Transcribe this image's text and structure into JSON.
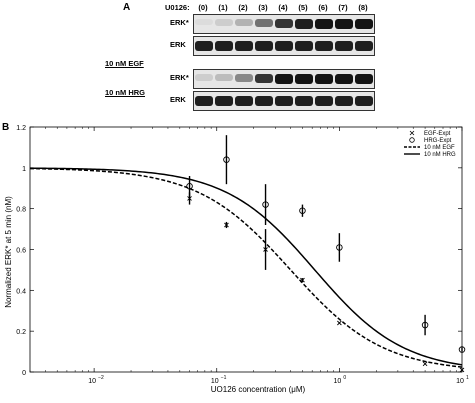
{
  "panel_a": {
    "letter": "A",
    "inhibitor_label": "U0126:",
    "lanes": [
      "(0)",
      "(1)",
      "(2)",
      "(3)",
      "(4)",
      "(5)",
      "(6)",
      "(7)",
      "(8)"
    ],
    "blocks": [
      {
        "condition": "10 nM EGF",
        "rows": [
          {
            "label": "ERK*",
            "intensities": [
              0.05,
              0.12,
              0.25,
              0.55,
              0.85,
              0.95,
              1.0,
              1.0,
              1.0
            ]
          },
          {
            "label": "ERK",
            "intensities": [
              0.95,
              0.95,
              0.95,
              0.95,
              0.95,
              0.95,
              0.95,
              0.95,
              0.95
            ]
          }
        ]
      },
      {
        "condition": "10 nM HRG",
        "rows": [
          {
            "label": "ERK*",
            "intensities": [
              0.12,
              0.2,
              0.45,
              0.85,
              1.0,
              1.0,
              1.0,
              1.0,
              1.0
            ]
          },
          {
            "label": "ERK",
            "intensities": [
              0.95,
              0.95,
              0.95,
              0.95,
              0.95,
              0.95,
              0.95,
              0.95,
              0.95
            ]
          }
        ]
      }
    ]
  },
  "panel_b": {
    "letter": "B"
  },
  "chart_data": {
    "type": "line",
    "title": "",
    "xlabel": "UO126 concentration (μM)",
    "ylabel": "Normalized ERK* at 5 min (nM)",
    "xscale": "log",
    "xlim": [
      0.003,
      10
    ],
    "ylim": [
      0,
      1.2
    ],
    "xticks": [
      0.01,
      0.1,
      1,
      10
    ],
    "xtick_labels": [
      "10",
      "10",
      "10",
      "10"
    ],
    "xtick_exponents": [
      "−2",
      "−1",
      "0",
      "1"
    ],
    "yticks": [
      0,
      0.2,
      0.4,
      0.6,
      0.8,
      1,
      1.2
    ],
    "ytick_labels": [
      "0",
      "0.2",
      "0.4",
      "0.6",
      "0.8",
      "1",
      "1.2"
    ],
    "grid": false,
    "legend_position": "top-right",
    "legend": [
      {
        "label": "EGF-Expt",
        "kind": "x-marker"
      },
      {
        "label": "HRG-Expt",
        "kind": "circle-marker"
      },
      {
        "label": "10 nM EGF",
        "kind": "dashed-line"
      },
      {
        "label": "10 nM HRG",
        "kind": "solid-line"
      }
    ],
    "series": [
      {
        "name": "10 nM EGF",
        "style": "dashed",
        "ic50": 0.4,
        "hill": 1.15,
        "x": [
          0.003,
          0.005,
          0.01,
          0.02,
          0.03,
          0.05,
          0.07,
          0.1,
          0.15,
          0.2,
          0.3,
          0.4,
          0.5,
          0.7,
          1,
          1.5,
          2,
          3,
          5,
          7,
          10
        ],
        "y": [
          0.998,
          0.996,
          0.99,
          0.986,
          0.976,
          0.944,
          0.905,
          0.85,
          0.77,
          0.7,
          0.58,
          0.49,
          0.42,
          0.32,
          0.22,
          0.14,
          0.09,
          0.05,
          0.02,
          0.01,
          0.0
        ]
      },
      {
        "name": "10 nM HRG",
        "style": "solid",
        "ic50": 0.63,
        "hill": 1.2,
        "x": [
          0.003,
          0.005,
          0.01,
          0.02,
          0.03,
          0.05,
          0.07,
          0.1,
          0.15,
          0.2,
          0.3,
          0.4,
          0.5,
          0.7,
          1,
          1.5,
          2,
          3,
          5,
          7,
          10
        ],
        "y": [
          0.999,
          0.998,
          0.996,
          0.992,
          0.985,
          0.965,
          0.94,
          0.9,
          0.84,
          0.79,
          0.7,
          0.62,
          0.55,
          0.45,
          0.35,
          0.25,
          0.19,
          0.12,
          0.06,
          0.03,
          0.01
        ]
      },
      {
        "name": "EGF-Expt",
        "style": "x-marker",
        "points": [
          {
            "x": 0.06,
            "y": 0.85,
            "err": 0.03
          },
          {
            "x": 0.12,
            "y": 0.72,
            "err": 0.015
          },
          {
            "x": 0.25,
            "y": 0.6,
            "err": 0.1
          },
          {
            "x": 0.5,
            "y": 0.45,
            "err": 0.01
          },
          {
            "x": 1.0,
            "y": 0.24,
            "err": 0.0
          },
          {
            "x": 5.0,
            "y": 0.04,
            "err": 0.0
          },
          {
            "x": 10.0,
            "y": 0.01,
            "err": 0.0
          }
        ]
      },
      {
        "name": "HRG-Expt",
        "style": "circle-marker",
        "points": [
          {
            "x": 0.06,
            "y": 0.91,
            "err": 0.05
          },
          {
            "x": 0.12,
            "y": 1.04,
            "err": 0.12
          },
          {
            "x": 0.25,
            "y": 0.82,
            "err": 0.1
          },
          {
            "x": 0.5,
            "y": 0.79,
            "err": 0.03
          },
          {
            "x": 1.0,
            "y": 0.61,
            "err": 0.07
          },
          {
            "x": 5.0,
            "y": 0.23,
            "err": 0.05
          },
          {
            "x": 10.0,
            "y": 0.11,
            "err": 0.01
          }
        ]
      }
    ]
  }
}
